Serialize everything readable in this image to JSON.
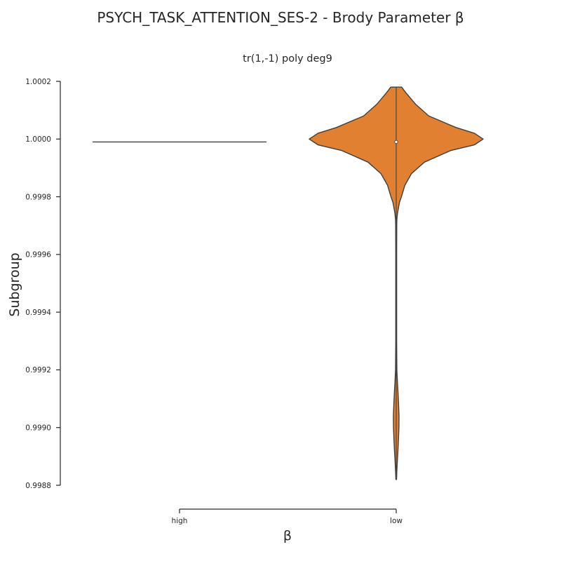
{
  "chart_data": {
    "type": "violin",
    "suptitle": "PSYCH_TASK_ATTENTION_SES-2 - Brody Parameter β",
    "title": "tr(1,-1) poly deg9",
    "xlabel": "β",
    "ylabel": "Subgroup",
    "categories": [
      "high",
      "low"
    ],
    "ylim": [
      0.9988,
      1.0002
    ],
    "yticks": [
      0.9988,
      0.999,
      0.9992,
      0.9994,
      0.9996,
      0.9998,
      1.0,
      1.0002
    ],
    "ytick_labels": [
      "0.9988",
      "0.9990",
      "0.9992",
      "0.9994",
      "0.9996",
      "0.9998",
      "1.0000",
      "1.0002"
    ],
    "series": [
      {
        "name": "high",
        "color": "#1f77b4",
        "shape": "degenerate",
        "value": 0.99999,
        "median": 0.99999
      },
      {
        "name": "low",
        "color": "#e08030",
        "shape": "violin",
        "min": 0.99882,
        "max": 1.00018,
        "median": 0.99999,
        "density": [
          {
            "y": 1.00018,
            "w": 0.05
          },
          {
            "y": 1.00016,
            "w": 0.09
          },
          {
            "y": 1.00012,
            "w": 0.18
          },
          {
            "y": 1.00008,
            "w": 0.3
          },
          {
            "y": 1.00004,
            "w": 0.55
          },
          {
            "y": 1.00002,
            "w": 0.72
          },
          {
            "y": 1.0,
            "w": 0.8
          },
          {
            "y": 0.99998,
            "w": 0.72
          },
          {
            "y": 0.99996,
            "w": 0.5
          },
          {
            "y": 0.99992,
            "w": 0.26
          },
          {
            "y": 0.99988,
            "w": 0.14
          },
          {
            "y": 0.99984,
            "w": 0.08
          },
          {
            "y": 0.9998,
            "w": 0.048
          },
          {
            "y": 0.99978,
            "w": 0.03
          },
          {
            "y": 0.99976,
            "w": 0.02
          },
          {
            "y": 0.99974,
            "w": 0.011
          },
          {
            "y": 0.99972,
            "w": 0.006
          },
          {
            "y": 0.9997,
            "w": 0.005
          },
          {
            "y": 0.9996,
            "w": 0.004
          },
          {
            "y": 0.9995,
            "w": 0.004
          },
          {
            "y": 0.9994,
            "w": 0.004
          },
          {
            "y": 0.9993,
            "w": 0.004
          },
          {
            "y": 0.9992,
            "w": 0.006
          },
          {
            "y": 0.99916,
            "w": 0.011
          },
          {
            "y": 0.99912,
            "w": 0.017
          },
          {
            "y": 0.99908,
            "w": 0.022
          },
          {
            "y": 0.99904,
            "w": 0.026
          },
          {
            "y": 0.999,
            "w": 0.025
          },
          {
            "y": 0.99896,
            "w": 0.021
          },
          {
            "y": 0.99892,
            "w": 0.016
          },
          {
            "y": 0.99888,
            "w": 0.01
          },
          {
            "y": 0.99885,
            "w": 0.006
          },
          {
            "y": 0.99882,
            "w": 0.003
          }
        ]
      }
    ]
  }
}
